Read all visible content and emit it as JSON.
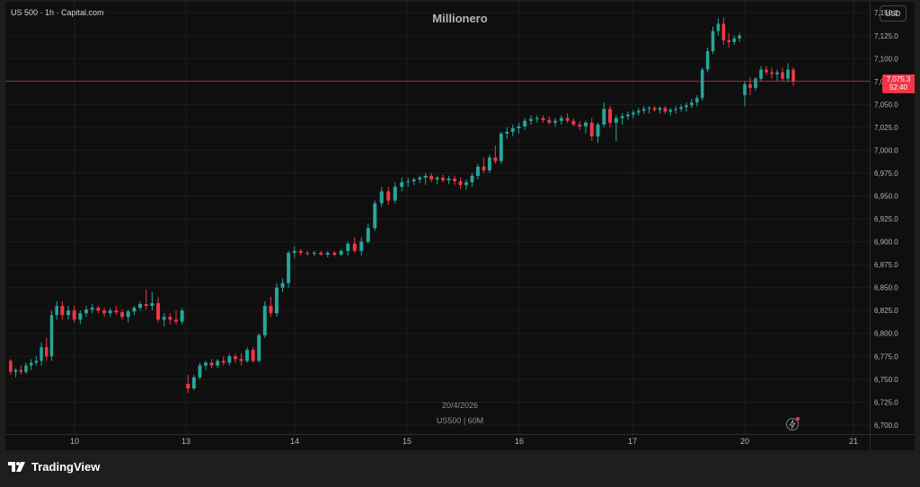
{
  "header": {
    "symbol_info": "US 500 · 1h · Capital.com",
    "title": "Millionero",
    "currency": "USD"
  },
  "watermark": {
    "date": "20/4/2026",
    "subtitle": "US500 | 60M"
  },
  "price_tag": {
    "price": "7,075.3",
    "countdown": "52:40"
  },
  "footer": {
    "brand": "TradingView"
  },
  "colors": {
    "up": "#26a69a",
    "down": "#f23645",
    "background": "#0f0f0f",
    "grid": "#1c1c1c",
    "price_line": "#f23645"
  },
  "icons": [
    "bolt-icon",
    "tradingview-logo-icon"
  ],
  "chart_data": {
    "type": "candlestick",
    "y_axis": {
      "range": [
        6695,
        7160
      ],
      "tick_values": [
        6700,
        6725,
        6750,
        6775,
        6800,
        6825,
        6850,
        6875,
        6900,
        6925,
        6950,
        6975,
        7000,
        7025,
        7050,
        7075,
        7100,
        7125,
        7150
      ],
      "tick_labels": [
        "6,700.0",
        "6,725.0",
        "6,750.0",
        "6,775.0",
        "6,800.0",
        "6,825.0",
        "6,850.0",
        "6,875.0",
        "6,900.0",
        "6,925.0",
        "6,950.0",
        "6,975.0",
        "7,000.0",
        "7,025.0",
        "7,050.0",
        "7,075.0",
        "7,100.0",
        "7,125.0",
        "7,150.0"
      ]
    },
    "x_axis": {
      "tick_labels": [
        "10",
        "13",
        "14",
        "15",
        "16",
        "17",
        "20",
        "21"
      ]
    },
    "current_price": 7075.3,
    "grid": true,
    "candles_by_day": [
      {
        "day": "9",
        "candles": [
          [
            6770,
            6772,
            6755,
            6758
          ],
          [
            6758,
            6762,
            6752,
            6760
          ],
          [
            6760,
            6765,
            6755,
            6758
          ],
          [
            6758,
            6768,
            6756,
            6765
          ],
          [
            6765,
            6772,
            6760,
            6768
          ],
          [
            6768,
            6775,
            6765,
            6770
          ],
          [
            6770,
            6790,
            6765,
            6785
          ],
          [
            6785,
            6795,
            6770,
            6775
          ],
          [
            6775,
            6825,
            6770,
            6820
          ],
          [
            6820,
            6835,
            6815,
            6830
          ]
        ]
      },
      {
        "day": "10",
        "candles": [
          [
            6830,
            6835,
            6815,
            6820
          ],
          [
            6820,
            6830,
            6815,
            6825
          ],
          [
            6825,
            6830,
            6812,
            6815
          ],
          [
            6815,
            6825,
            6810,
            6822
          ],
          [
            6822,
            6830,
            6818,
            6826
          ],
          [
            6826,
            6832,
            6822,
            6828
          ],
          [
            6828,
            6830,
            6822,
            6825
          ],
          [
            6825,
            6828,
            6818,
            6822
          ],
          [
            6822,
            6828,
            6818,
            6825
          ],
          [
            6825,
            6830,
            6820,
            6823
          ],
          [
            6823,
            6826,
            6815,
            6818
          ],
          [
            6818,
            6826,
            6812,
            6824
          ],
          [
            6824,
            6830,
            6820,
            6828
          ],
          [
            6828,
            6835,
            6825,
            6832
          ],
          [
            6832,
            6848,
            6826,
            6830
          ],
          [
            6830,
            6845,
            6825,
            6833
          ],
          [
            6833,
            6840,
            6812,
            6815
          ],
          [
            6815,
            6822,
            6808,
            6818
          ],
          [
            6818,
            6822,
            6810,
            6815
          ],
          [
            6815,
            6825,
            6810,
            6813
          ],
          [
            6813,
            6828,
            6810,
            6825
          ]
        ]
      },
      {
        "day": "13",
        "candles": [
          [
            6745,
            6755,
            6735,
            6740
          ],
          [
            6740,
            6755,
            6738,
            6752
          ],
          [
            6752,
            6768,
            6750,
            6765
          ],
          [
            6765,
            6770,
            6760,
            6768
          ],
          [
            6768,
            6772,
            6762,
            6765
          ],
          [
            6765,
            6772,
            6762,
            6770
          ],
          [
            6770,
            6775,
            6765,
            6768
          ],
          [
            6768,
            6778,
            6765,
            6775
          ],
          [
            6775,
            6778,
            6768,
            6772
          ],
          [
            6772,
            6778,
            6765,
            6770
          ],
          [
            6770,
            6785,
            6768,
            6782
          ],
          [
            6782,
            6785,
            6768,
            6770
          ],
          [
            6770,
            6800,
            6768,
            6798
          ],
          [
            6798,
            6835,
            6795,
            6830
          ],
          [
            6830,
            6840,
            6818,
            6822
          ],
          [
            6822,
            6855,
            6818,
            6850
          ],
          [
            6850,
            6860,
            6845,
            6855
          ],
          [
            6855,
            6890,
            6850,
            6888
          ],
          [
            6888,
            6895,
            6882,
            6890
          ]
        ]
      },
      {
        "day": "14",
        "candles": [
          [
            6890,
            6892,
            6885,
            6888
          ],
          [
            6888,
            6890,
            6885,
            6887
          ],
          [
            6887,
            6890,
            6884,
            6888
          ],
          [
            6888,
            6890,
            6885,
            6886
          ],
          [
            6886,
            6890,
            6883,
            6888
          ],
          [
            6888,
            6890,
            6884,
            6886
          ],
          [
            6886,
            6892,
            6884,
            6890
          ],
          [
            6890,
            6900,
            6885,
            6898
          ],
          [
            6898,
            6905,
            6888,
            6890
          ],
          [
            6890,
            6905,
            6885,
            6900
          ],
          [
            6900,
            6920,
            6898,
            6915
          ],
          [
            6915,
            6945,
            6912,
            6942
          ],
          [
            6942,
            6960,
            6938,
            6955
          ],
          [
            6955,
            6960,
            6940,
            6945
          ],
          [
            6945,
            6965,
            6942,
            6960
          ],
          [
            6960,
            6970,
            6955,
            6965
          ]
        ]
      },
      {
        "day": "15",
        "candles": [
          [
            6965,
            6970,
            6960,
            6966
          ],
          [
            6966,
            6970,
            6962,
            6968
          ],
          [
            6968,
            6972,
            6964,
            6970
          ],
          [
            6970,
            6975,
            6962,
            6972
          ],
          [
            6972,
            6975,
            6965,
            6968
          ],
          [
            6968,
            6972,
            6963,
            6970
          ],
          [
            6970,
            6973,
            6965,
            6967
          ],
          [
            6967,
            6972,
            6963,
            6969
          ],
          [
            6969,
            6972,
            6962,
            6966
          ],
          [
            6966,
            6970,
            6958,
            6962
          ],
          [
            6962,
            6968,
            6957,
            6965
          ],
          [
            6965,
            6975,
            6960,
            6972
          ],
          [
            6972,
            6985,
            6968,
            6982
          ],
          [
            6982,
            6992,
            6975,
            6978
          ],
          [
            6978,
            6995,
            6975,
            6992
          ],
          [
            6992,
            7005,
            6985,
            6988
          ],
          [
            6988,
            7020,
            6985,
            7018
          ],
          [
            7018,
            7025,
            7012,
            7020
          ],
          [
            7020,
            7028,
            7015,
            7024
          ]
        ]
      },
      {
        "day": "16",
        "candles": [
          [
            7024,
            7030,
            7018,
            7026
          ],
          [
            7026,
            7035,
            7022,
            7032
          ],
          [
            7032,
            7038,
            7028,
            7034
          ],
          [
            7034,
            7038,
            7030,
            7035
          ],
          [
            7035,
            7038,
            7030,
            7033
          ],
          [
            7033,
            7037,
            7028,
            7030
          ],
          [
            7030,
            7035,
            7026,
            7032
          ],
          [
            7032,
            7038,
            7028,
            7035
          ],
          [
            7035,
            7040,
            7030,
            7032
          ],
          [
            7032,
            7035,
            7026,
            7028
          ],
          [
            7028,
            7032,
            7022,
            7026
          ],
          [
            7026,
            7032,
            7018,
            7030
          ],
          [
            7030,
            7035,
            7010,
            7015
          ],
          [
            7015,
            7030,
            7008,
            7028
          ],
          [
            7028,
            7052,
            7025,
            7045
          ],
          [
            7045,
            7048,
            7025,
            7030
          ],
          [
            7030,
            7038,
            7010,
            7035
          ],
          [
            7035,
            7040,
            7028,
            7037
          ]
        ]
      },
      {
        "day": "17",
        "candles": [
          [
            7037,
            7042,
            7033,
            7039
          ],
          [
            7039,
            7044,
            7035,
            7041
          ],
          [
            7041,
            7046,
            7038,
            7043
          ],
          [
            7043,
            7048,
            7040,
            7045
          ],
          [
            7045,
            7048,
            7040,
            7046
          ],
          [
            7046,
            7048,
            7042,
            7044
          ],
          [
            7044,
            7048,
            7040,
            7046
          ],
          [
            7046,
            7048,
            7040,
            7042
          ],
          [
            7042,
            7046,
            7038,
            7044
          ],
          [
            7044,
            7048,
            7040,
            7045
          ],
          [
            7045,
            7050,
            7042,
            7047
          ],
          [
            7047,
            7052,
            7042,
            7049
          ],
          [
            7049,
            7056,
            7046,
            7052
          ],
          [
            7052,
            7060,
            7048,
            7057
          ],
          [
            7057,
            7090,
            7054,
            7088
          ],
          [
            7088,
            7112,
            7085,
            7108
          ],
          [
            7108,
            7135,
            7105,
            7130
          ],
          [
            7130,
            7144,
            7125,
            7138
          ],
          [
            7138,
            7145,
            7115,
            7120
          ],
          [
            7120,
            7128,
            7112,
            7118
          ],
          [
            7118,
            7125,
            7115,
            7122
          ],
          [
            7122,
            7128,
            7118,
            7125
          ]
        ]
      },
      {
        "day": "20",
        "candles": [
          [
            7060,
            7075,
            7048,
            7072
          ],
          [
            7072,
            7080,
            7060,
            7068
          ],
          [
            7068,
            7080,
            7065,
            7078
          ],
          [
            7078,
            7092,
            7075,
            7088
          ],
          [
            7088,
            7092,
            7082,
            7085
          ],
          [
            7085,
            7090,
            7078,
            7083
          ],
          [
            7083,
            7088,
            7076,
            7085
          ],
          [
            7085,
            7090,
            7075,
            7078
          ],
          [
            7078,
            7095,
            7075,
            7088
          ],
          [
            7088,
            7090,
            7070,
            7075
          ]
        ]
      }
    ]
  }
}
